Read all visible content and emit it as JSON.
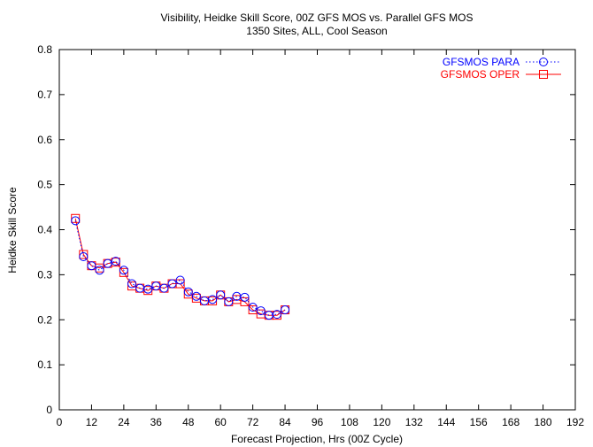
{
  "chart_data": {
    "type": "line",
    "title": "Visibility, Heidke Skill Score, 00Z GFS MOS vs. Parallel GFS MOS",
    "subtitle": "1350 Sites, ALL, Cool Season",
    "xlabel": "Forecast Projection, Hrs (00Z Cycle)",
    "ylabel": "Heidke Skill Score",
    "xlim": [
      0,
      192
    ],
    "ylim": [
      0,
      0.8
    ],
    "x_ticks": [
      0,
      12,
      24,
      36,
      48,
      60,
      72,
      84,
      96,
      108,
      120,
      132,
      144,
      156,
      168,
      180,
      192
    ],
    "y_ticks": [
      0,
      0.1,
      0.2,
      0.3,
      0.4,
      0.5,
      0.6,
      0.7,
      0.8
    ],
    "x_tick_labels": [
      "0",
      "12",
      "24",
      "36",
      "48",
      "60",
      "72",
      "84",
      "96",
      "108",
      "120",
      "132",
      "144",
      "156",
      "168",
      "180",
      "192"
    ],
    "y_tick_labels": [
      "0",
      "0.1",
      "0.2",
      "0.3",
      "0.4",
      "0.5",
      "0.6",
      "0.7",
      "0.8"
    ],
    "grid": false,
    "legend_position": "top-right",
    "x": [
      6,
      9,
      12,
      15,
      18,
      21,
      24,
      27,
      30,
      33,
      36,
      39,
      42,
      45,
      48,
      51,
      54,
      57,
      60,
      63,
      66,
      69,
      72,
      75,
      78,
      81,
      84
    ],
    "series": [
      {
        "name": "GFSMOS PARA",
        "color": "#0000ff",
        "line_style": "dotted",
        "marker": "circle",
        "values": [
          0.42,
          0.34,
          0.32,
          0.31,
          0.325,
          0.33,
          0.31,
          0.28,
          0.27,
          0.268,
          0.275,
          0.27,
          0.28,
          0.288,
          0.262,
          0.252,
          0.242,
          0.245,
          0.255,
          0.24,
          0.252,
          0.25,
          0.228,
          0.22,
          0.21,
          0.212,
          0.222
        ]
      },
      {
        "name": "GFSMOS OPER",
        "color": "#ff0000",
        "line_style": "solid",
        "marker": "square",
        "values": [
          0.425,
          0.345,
          0.32,
          0.315,
          0.325,
          0.328,
          0.305,
          0.275,
          0.27,
          0.265,
          0.275,
          0.27,
          0.28,
          0.28,
          0.257,
          0.248,
          0.242,
          0.242,
          0.255,
          0.24,
          0.245,
          0.24,
          0.222,
          0.213,
          0.21,
          0.21,
          0.222
        ]
      }
    ]
  }
}
